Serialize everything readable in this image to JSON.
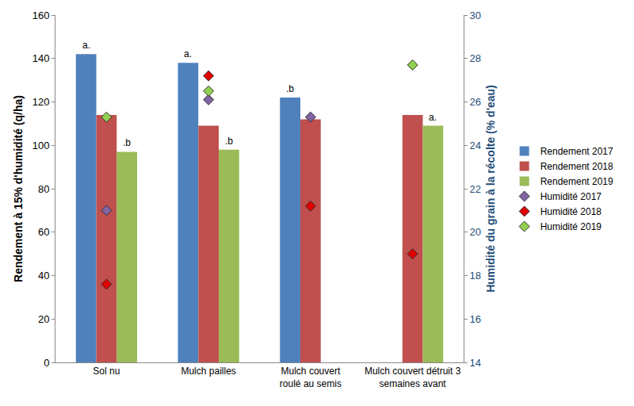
{
  "chart_data": {
    "type": "bar",
    "categories": [
      "Sol nu",
      "Mulch pailles",
      "Mulch couvert\nroulé au semis",
      "Mulch couvert détruit 3\nsemaines avant"
    ],
    "ylabel": "Rendement à 15% d'humidité (q/ha)",
    "y2label": "Humidité du grain à la récolte (% d'eau)",
    "ylim": [
      0,
      160
    ],
    "yticks": [
      0,
      20,
      40,
      60,
      80,
      100,
      120,
      140,
      160
    ],
    "y2lim": [
      14,
      30
    ],
    "y2ticks": [
      14,
      16,
      18,
      20,
      22,
      24,
      26,
      28,
      30
    ],
    "grid": false,
    "legend": "right",
    "series": [
      {
        "name": "Rendement 2017",
        "type": "bar",
        "color": "#4f81bd",
        "values": [
          142,
          138,
          122,
          null
        ],
        "annotations": [
          "a.",
          "a.",
          ".b",
          null
        ]
      },
      {
        "name": "Rendement 2018",
        "type": "bar",
        "color": "#c0504d",
        "values": [
          114,
          109,
          112,
          114
        ],
        "annotations": [
          null,
          null,
          null,
          null
        ]
      },
      {
        "name": "Rendement 2019",
        "type": "bar",
        "color": "#9bbb59",
        "values": [
          97,
          98,
          null,
          109
        ],
        "annotations": [
          ".b",
          ".b",
          null,
          "a."
        ]
      },
      {
        "name": "Humidité 2017",
        "type": "scatter",
        "marker": "diamond",
        "axis": "y2",
        "color": "#8064a2",
        "values": [
          21.0,
          26.1,
          25.3,
          null
        ]
      },
      {
        "name": "Humidité 2018",
        "type": "scatter",
        "marker": "diamond",
        "axis": "y2",
        "color": "#e00000",
        "values": [
          17.6,
          27.2,
          21.2,
          19.0
        ]
      },
      {
        "name": "Humidité 2019",
        "type": "scatter",
        "marker": "diamond",
        "axis": "y2",
        "color": "#92d050",
        "values": [
          25.3,
          26.5,
          null,
          27.7
        ]
      }
    ]
  }
}
